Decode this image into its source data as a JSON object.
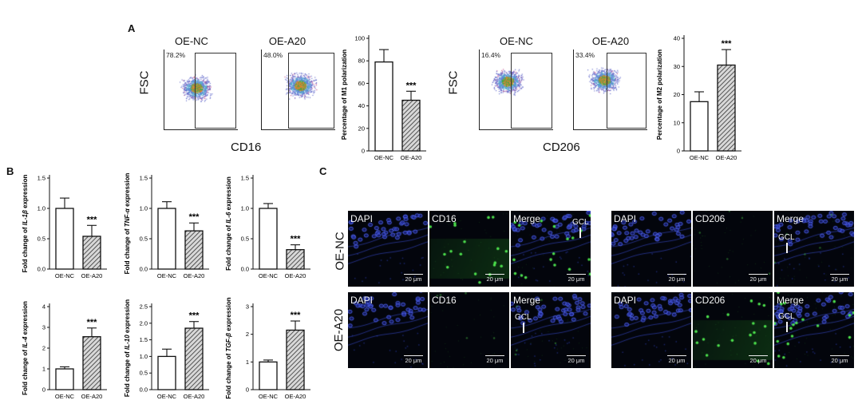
{
  "panels": {
    "a": "A",
    "b": "B",
    "c": "C"
  },
  "flow": {
    "m1": {
      "titles": [
        "OE-NC",
        "OE-A20"
      ],
      "gates": [
        "78.2%",
        "48.0%"
      ],
      "y_label": "FSC",
      "x_label": "CD16"
    },
    "m2": {
      "titles": [
        "OE-NC",
        "OE-A20"
      ],
      "gates": [
        "16.4%",
        "33.4%"
      ],
      "y_label": "FSC",
      "x_label": "CD206"
    }
  },
  "micro": {
    "rows": [
      "OE-NC",
      "OE-A20"
    ],
    "left_labels": [
      "DAPI",
      "CD16",
      "Merge"
    ],
    "right_labels": [
      "DAPI",
      "CD206",
      "Merge"
    ],
    "scale": "20 μm",
    "gcl": "GCL",
    "colors": {
      "dapi": "#2a3fd4",
      "marker": "#33d13a"
    }
  },
  "chart_data": [
    {
      "id": "m1-polarization",
      "type": "bar",
      "categories": [
        "OE-NC",
        "OE-A20"
      ],
      "values": [
        79,
        45
      ],
      "errors": [
        11,
        8
      ],
      "ylabel": "Percentage of M1 polarization",
      "ylim": [
        0,
        100
      ],
      "yticks": [
        0,
        20,
        40,
        60,
        80,
        100
      ],
      "sig": "***"
    },
    {
      "id": "m2-polarization",
      "type": "bar",
      "categories": [
        "OE-NC",
        "OE-A20"
      ],
      "values": [
        17.5,
        30.5
      ],
      "errors": [
        3.5,
        5.5
      ],
      "ylabel": "Percentage of M2 polarization",
      "ylim": [
        0,
        40
      ],
      "yticks": [
        0,
        10,
        20,
        30,
        40
      ],
      "sig": "***"
    },
    {
      "id": "il1b",
      "type": "bar",
      "categories": [
        "OE-NC",
        "OE-A20"
      ],
      "values": [
        1.0,
        0.54
      ],
      "errors": [
        0.17,
        0.18
      ],
      "ylabel_prefix": "Fold change of ",
      "ylabel_gene": "IL-1β",
      "ylabel_suffix": " expression",
      "ylim": [
        0,
        1.5
      ],
      "yticks": [
        "0.0",
        "0.5",
        "1.0",
        "1.5"
      ],
      "sig": "***"
    },
    {
      "id": "tnfa",
      "type": "bar",
      "categories": [
        "OE-NC",
        "OE-A20"
      ],
      "values": [
        1.0,
        0.63
      ],
      "errors": [
        0.11,
        0.13
      ],
      "ylabel_prefix": "Fold change of ",
      "ylabel_gene": "TNF-α",
      "ylabel_suffix": " expression",
      "ylim": [
        0,
        1.5
      ],
      "yticks": [
        "0.0",
        "0.5",
        "1.0",
        "1.5"
      ],
      "sig": "***"
    },
    {
      "id": "il6",
      "type": "bar",
      "categories": [
        "OE-NC",
        "OE-A20"
      ],
      "values": [
        1.0,
        0.32
      ],
      "errors": [
        0.08,
        0.08
      ],
      "ylabel_prefix": "Fold change of ",
      "ylabel_gene": "IL-6",
      "ylabel_suffix": " expression",
      "ylim": [
        0,
        1.5
      ],
      "yticks": [
        "0.0",
        "0.5",
        "1.0",
        "1.5"
      ],
      "sig": "***"
    },
    {
      "id": "il4",
      "type": "bar",
      "categories": [
        "OE-NC",
        "OE-A20"
      ],
      "values": [
        1.0,
        2.55
      ],
      "errors": [
        0.1,
        0.42
      ],
      "ylabel_prefix": "Fold change of ",
      "ylabel_gene": "IL-4",
      "ylabel_suffix": " expression",
      "ylim": [
        0,
        4
      ],
      "yticks": [
        "0",
        "1",
        "2",
        "3",
        "4"
      ],
      "sig": "***"
    },
    {
      "id": "il10",
      "type": "bar",
      "categories": [
        "OE-NC",
        "OE-A20"
      ],
      "values": [
        1.0,
        1.85
      ],
      "errors": [
        0.22,
        0.2
      ],
      "ylabel_prefix": "Fold change of ",
      "ylabel_gene": "IL-10",
      "ylabel_suffix": " expression",
      "ylim": [
        0,
        2.5
      ],
      "yticks": [
        "0.0",
        "0.5",
        "1.0",
        "1.5",
        "2.0",
        "2.5"
      ],
      "sig": "***"
    },
    {
      "id": "tgfb",
      "type": "bar",
      "categories": [
        "OE-NC",
        "OE-A20"
      ],
      "values": [
        1.0,
        2.15
      ],
      "errors": [
        0.07,
        0.33
      ],
      "ylabel_prefix": "Fold change of ",
      "ylabel_gene": "TGF-β",
      "ylabel_suffix": " expression",
      "ylim": [
        0,
        3
      ],
      "yticks": [
        "0",
        "1",
        "2",
        "3"
      ],
      "sig": "***"
    }
  ]
}
